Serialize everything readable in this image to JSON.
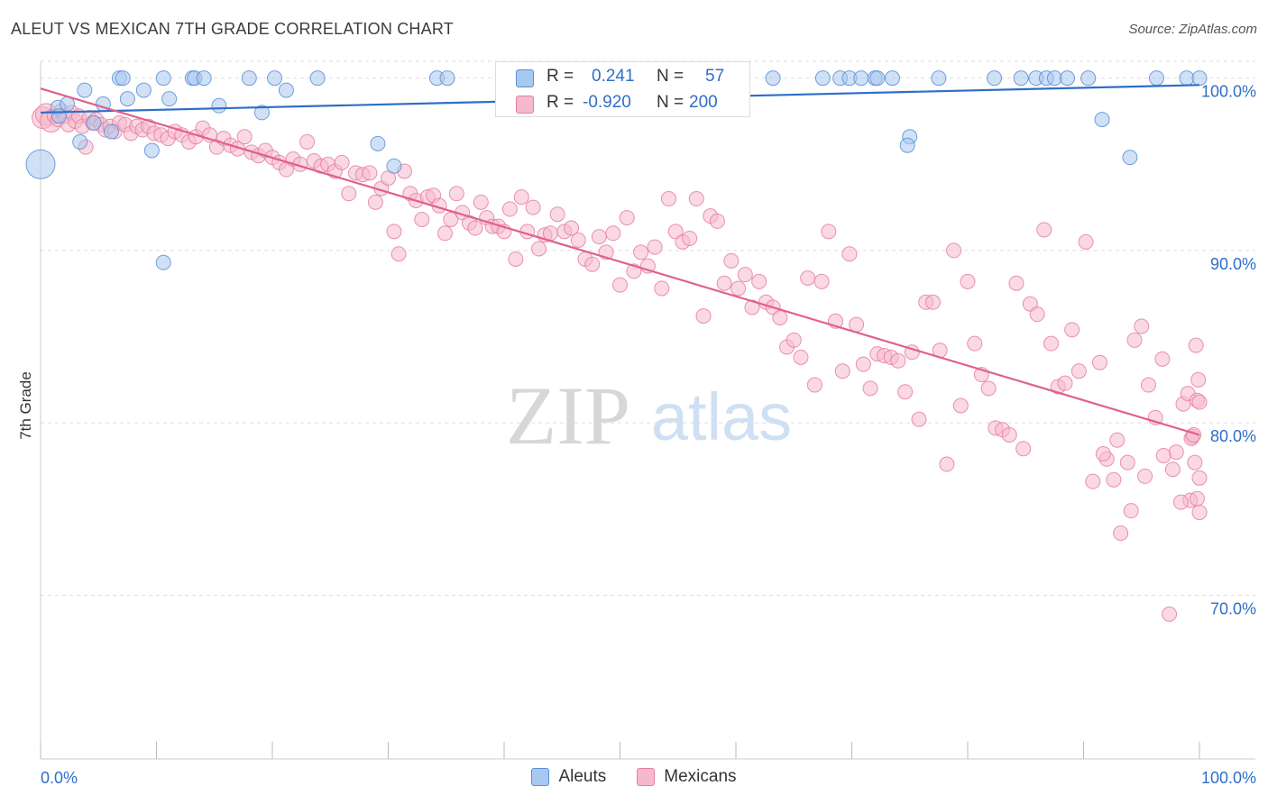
{
  "title": "ALEUT VS MEXICAN 7TH GRADE CORRELATION CHART",
  "source": "Source: ZipAtlas.com",
  "watermark": {
    "zip": "ZIP",
    "atlas": "atlas"
  },
  "colors": {
    "aleut_fill": "#a9c8ef",
    "aleut_stroke": "#5b8fd6",
    "aleut_line": "#2f6ec7",
    "mexican_fill": "#f6b9cc",
    "mexican_stroke": "#e57fa1",
    "mexican_line": "#e0608e",
    "axis_label": "#2f6ec7",
    "grid": "#dddddd"
  },
  "legend_stats": {
    "aleut": {
      "r_label": "R =",
      "r_value": "0.241",
      "n_label": "N =",
      "n_value": "57"
    },
    "mexican": {
      "r_label": "R =",
      "r_value": "-0.920",
      "n_label": "N =",
      "n_value": "200"
    }
  },
  "chart_data": {
    "type": "scatter",
    "title": "ALEUT VS MEXICAN 7TH GRADE CORRELATION CHART",
    "xlabel": "",
    "ylabel": "7th Grade",
    "xlim": [
      0,
      100
    ],
    "ylim": [
      60.5,
      101.5
    ],
    "x_tick_labels": [
      "0.0%",
      "100.0%"
    ],
    "y_ticks": [
      70,
      80,
      90,
      100
    ],
    "y_tick_labels": [
      "70.0%",
      "80.0%",
      "90.0%",
      "100.0%"
    ],
    "grid": true,
    "legend_position": "bottom-center",
    "series": [
      {
        "name": "Aleuts",
        "trend": {
          "x": [
            0,
            100
          ],
          "y": [
            98.0,
            99.6
          ]
        },
        "points": [
          [
            0,
            95.0
          ],
          [
            1.5,
            98.3
          ],
          [
            1.6,
            97.8
          ],
          [
            2.3,
            98.5
          ],
          [
            3.4,
            96.3
          ],
          [
            3.8,
            99.3
          ],
          [
            4.6,
            97.4
          ],
          [
            5.4,
            98.5
          ],
          [
            6.1,
            96.9
          ],
          [
            6.8,
            100.0
          ],
          [
            7.1,
            100.0
          ],
          [
            7.5,
            98.8
          ],
          [
            8.9,
            99.3
          ],
          [
            9.6,
            95.8
          ],
          [
            10.6,
            100.0
          ],
          [
            10.6,
            89.3
          ],
          [
            11.1,
            98.8
          ],
          [
            13.1,
            100.0
          ],
          [
            13.3,
            100.0
          ],
          [
            14.1,
            100.0
          ],
          [
            15.4,
            98.4
          ],
          [
            18.0,
            100.0
          ],
          [
            19.1,
            98.0
          ],
          [
            20.2,
            100.0
          ],
          [
            21.2,
            99.3
          ],
          [
            23.9,
            100.0
          ],
          [
            29.1,
            96.2
          ],
          [
            30.5,
            94.9
          ],
          [
            34.2,
            100.0
          ],
          [
            35.1,
            100.0
          ],
          [
            46.7,
            100.0
          ],
          [
            53.9,
            100.0
          ],
          [
            55.1,
            100.0
          ],
          [
            56.2,
            100.0
          ],
          [
            63.2,
            100.0
          ],
          [
            67.5,
            100.0
          ],
          [
            69.0,
            100.0
          ],
          [
            69.8,
            100.0
          ],
          [
            70.8,
            100.0
          ],
          [
            72.0,
            100.0
          ],
          [
            72.2,
            100.0
          ],
          [
            73.5,
            100.0
          ],
          [
            75.0,
            96.6
          ],
          [
            74.8,
            96.1
          ],
          [
            77.5,
            100.0
          ],
          [
            82.3,
            100.0
          ],
          [
            84.6,
            100.0
          ],
          [
            85.9,
            100.0
          ],
          [
            86.8,
            100.0
          ],
          [
            87.5,
            100.0
          ],
          [
            88.6,
            100.0
          ],
          [
            90.4,
            100.0
          ],
          [
            91.6,
            97.6
          ],
          [
            94.0,
            95.4
          ],
          [
            96.3,
            100.0
          ],
          [
            98.9,
            100.0
          ],
          [
            100.0,
            100.0
          ]
        ]
      },
      {
        "name": "Mexicans",
        "trend": {
          "x": [
            0,
            100
          ],
          "y": [
            99.4,
            79.3
          ]
        },
        "points": [
          [
            0.2,
            97.7
          ],
          [
            0.5,
            97.9
          ],
          [
            0.9,
            97.5
          ],
          [
            1.2,
            97.8
          ],
          [
            1.5,
            97.6
          ],
          [
            1.8,
            98.1
          ],
          [
            2.1,
            97.8
          ],
          [
            2.4,
            97.3
          ],
          [
            2.7,
            98.0
          ],
          [
            3.0,
            97.5
          ],
          [
            3.3,
            97.8
          ],
          [
            3.6,
            97.2
          ],
          [
            3.9,
            96.0
          ],
          [
            4.2,
            97.7
          ],
          [
            4.5,
            97.4
          ],
          [
            4.8,
            97.6
          ],
          [
            5.2,
            97.3
          ],
          [
            5.6,
            97.0
          ],
          [
            6.0,
            97.2
          ],
          [
            6.4,
            96.9
          ],
          [
            6.8,
            97.4
          ],
          [
            7.3,
            97.3
          ],
          [
            7.8,
            96.8
          ],
          [
            8.3,
            97.2
          ],
          [
            8.8,
            97.0
          ],
          [
            9.3,
            97.2
          ],
          [
            9.8,
            96.8
          ],
          [
            10.4,
            96.7
          ],
          [
            11.0,
            96.5
          ],
          [
            11.6,
            96.9
          ],
          [
            12.2,
            96.7
          ],
          [
            12.8,
            96.3
          ],
          [
            13.4,
            96.6
          ],
          [
            14.0,
            97.1
          ],
          [
            14.6,
            96.7
          ],
          [
            15.2,
            96.0
          ],
          [
            15.8,
            96.5
          ],
          [
            16.4,
            96.1
          ],
          [
            17.0,
            95.9
          ],
          [
            17.6,
            96.6
          ],
          [
            18.2,
            95.7
          ],
          [
            18.8,
            95.5
          ],
          [
            19.4,
            95.8
          ],
          [
            20.0,
            95.4
          ],
          [
            20.6,
            95.1
          ],
          [
            21.2,
            94.7
          ],
          [
            21.8,
            95.3
          ],
          [
            22.4,
            95.0
          ],
          [
            23.0,
            96.3
          ],
          [
            23.6,
            95.2
          ],
          [
            24.2,
            94.9
          ],
          [
            24.8,
            95.0
          ],
          [
            25.4,
            94.6
          ],
          [
            26.0,
            95.1
          ],
          [
            26.6,
            93.3
          ],
          [
            27.2,
            94.5
          ],
          [
            27.8,
            94.4
          ],
          [
            28.4,
            94.5
          ],
          [
            28.9,
            92.8
          ],
          [
            29.4,
            93.6
          ],
          [
            30.0,
            94.2
          ],
          [
            30.5,
            91.1
          ],
          [
            30.9,
            89.8
          ],
          [
            31.4,
            94.6
          ],
          [
            31.9,
            93.3
          ],
          [
            32.4,
            92.9
          ],
          [
            32.9,
            91.8
          ],
          [
            33.4,
            93.1
          ],
          [
            33.9,
            93.2
          ],
          [
            34.4,
            92.6
          ],
          [
            34.9,
            91.0
          ],
          [
            35.4,
            91.8
          ],
          [
            35.9,
            93.3
          ],
          [
            36.4,
            92.2
          ],
          [
            37.0,
            91.6
          ],
          [
            37.5,
            91.3
          ],
          [
            38.0,
            92.8
          ],
          [
            38.5,
            91.9
          ],
          [
            39.0,
            91.4
          ],
          [
            39.5,
            91.4
          ],
          [
            40.0,
            91.1
          ],
          [
            40.5,
            92.4
          ],
          [
            41.0,
            89.5
          ],
          [
            41.5,
            93.1
          ],
          [
            42.0,
            91.1
          ],
          [
            42.5,
            92.5
          ],
          [
            43.0,
            90.1
          ],
          [
            43.5,
            90.9
          ],
          [
            44.0,
            91.0
          ],
          [
            44.6,
            92.1
          ],
          [
            45.2,
            91.1
          ],
          [
            45.8,
            91.3
          ],
          [
            46.4,
            90.6
          ],
          [
            47.0,
            89.5
          ],
          [
            47.6,
            89.2
          ],
          [
            48.2,
            90.8
          ],
          [
            48.8,
            89.9
          ],
          [
            49.4,
            91.0
          ],
          [
            50.0,
            88.0
          ],
          [
            50.6,
            91.9
          ],
          [
            51.2,
            88.8
          ],
          [
            51.8,
            89.9
          ],
          [
            52.4,
            89.1
          ],
          [
            53.0,
            90.2
          ],
          [
            53.6,
            87.8
          ],
          [
            54.2,
            93.0
          ],
          [
            54.8,
            91.1
          ],
          [
            55.4,
            90.5
          ],
          [
            56.0,
            90.7
          ],
          [
            56.6,
            93.0
          ],
          [
            57.2,
            86.2
          ],
          [
            57.8,
            92.0
          ],
          [
            58.4,
            91.7
          ],
          [
            59.0,
            88.1
          ],
          [
            59.6,
            89.4
          ],
          [
            60.2,
            87.8
          ],
          [
            60.8,
            88.6
          ],
          [
            61.4,
            86.7
          ],
          [
            62.0,
            88.2
          ],
          [
            62.6,
            87.0
          ],
          [
            63.2,
            86.7
          ],
          [
            63.8,
            86.1
          ],
          [
            64.4,
            84.4
          ],
          [
            65.0,
            84.8
          ],
          [
            65.6,
            83.8
          ],
          [
            66.2,
            88.4
          ],
          [
            66.8,
            82.2
          ],
          [
            67.4,
            88.2
          ],
          [
            68.0,
            91.1
          ],
          [
            68.6,
            85.9
          ],
          [
            69.2,
            83.0
          ],
          [
            69.8,
            89.8
          ],
          [
            70.4,
            85.7
          ],
          [
            71.0,
            83.4
          ],
          [
            71.6,
            82.0
          ],
          [
            72.2,
            84.0
          ],
          [
            72.8,
            83.9
          ],
          [
            73.4,
            83.8
          ],
          [
            74.0,
            83.6
          ],
          [
            74.6,
            81.8
          ],
          [
            75.2,
            84.1
          ],
          [
            75.8,
            80.2
          ],
          [
            76.4,
            87.0
          ],
          [
            77.0,
            87.0
          ],
          [
            77.6,
            84.2
          ],
          [
            78.2,
            77.6
          ],
          [
            78.8,
            90.0
          ],
          [
            79.4,
            81.0
          ],
          [
            80.0,
            88.2
          ],
          [
            80.6,
            84.6
          ],
          [
            81.2,
            82.8
          ],
          [
            81.8,
            82.0
          ],
          [
            82.4,
            79.7
          ],
          [
            83.0,
            79.6
          ],
          [
            83.6,
            79.3
          ],
          [
            84.2,
            88.1
          ],
          [
            84.8,
            78.5
          ],
          [
            85.4,
            86.9
          ],
          [
            86.0,
            86.3
          ],
          [
            86.6,
            91.2
          ],
          [
            87.2,
            84.6
          ],
          [
            87.8,
            82.1
          ],
          [
            88.4,
            82.3
          ],
          [
            89.0,
            85.4
          ],
          [
            89.6,
            83.0
          ],
          [
            90.2,
            90.5
          ],
          [
            90.8,
            76.6
          ],
          [
            91.4,
            83.5
          ],
          [
            92.0,
            77.9
          ],
          [
            92.6,
            76.7
          ],
          [
            93.2,
            73.6
          ],
          [
            93.8,
            77.7
          ],
          [
            94.4,
            84.8
          ],
          [
            95.0,
            85.6
          ],
          [
            95.6,
            82.2
          ],
          [
            96.2,
            80.3
          ],
          [
            96.8,
            83.7
          ],
          [
            97.4,
            68.9
          ],
          [
            98.0,
            78.3
          ],
          [
            98.6,
            81.1
          ],
          [
            99.0,
            81.7
          ],
          [
            99.4,
            79.2
          ],
          [
            99.8,
            81.3
          ],
          [
            99.2,
            75.5
          ],
          [
            99.6,
            77.7
          ],
          [
            99.9,
            82.5
          ],
          [
            99.3,
            79.1
          ],
          [
            99.7,
            84.5
          ],
          [
            100.0,
            76.8
          ],
          [
            100.0,
            81.2
          ],
          [
            99.8,
            75.6
          ],
          [
            100.0,
            74.8
          ],
          [
            99.5,
            79.3
          ],
          [
            98.4,
            75.4
          ],
          [
            97.7,
            77.3
          ],
          [
            96.9,
            78.1
          ],
          [
            95.3,
            76.9
          ],
          [
            94.1,
            74.9
          ],
          [
            92.9,
            79.0
          ],
          [
            91.7,
            78.2
          ]
        ]
      }
    ]
  }
}
